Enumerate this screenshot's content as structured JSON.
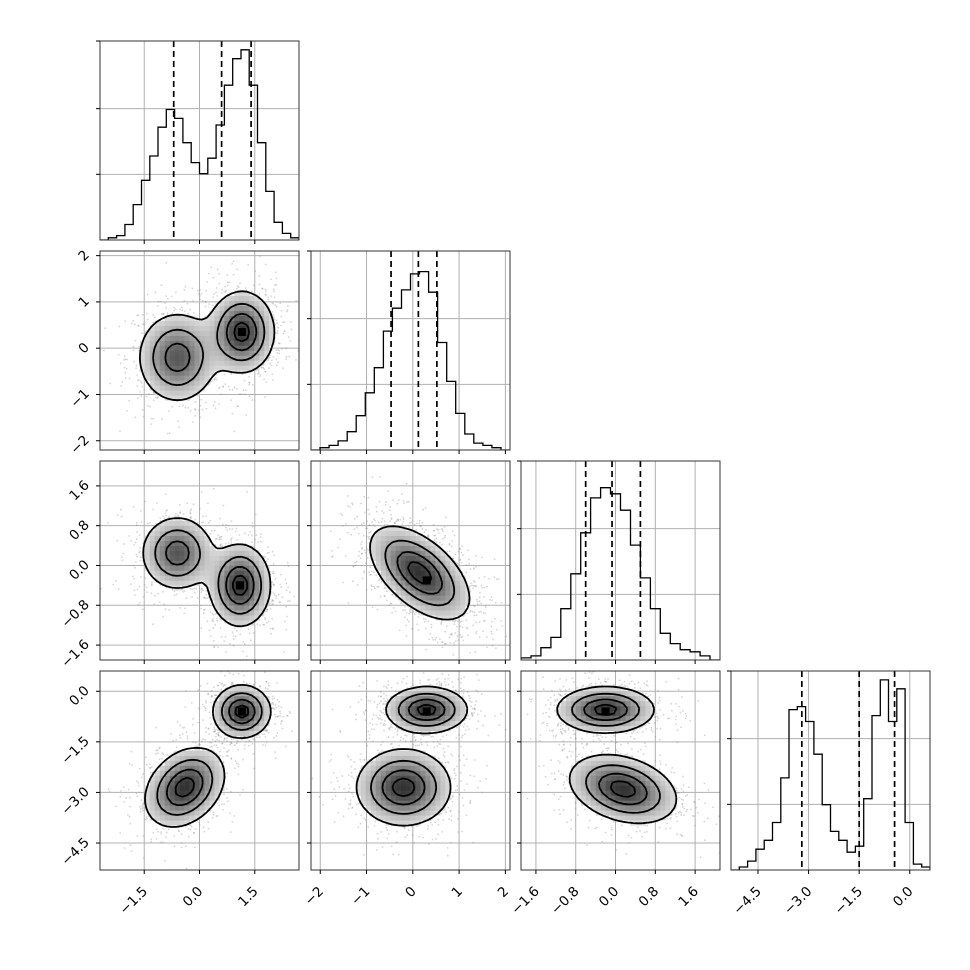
{
  "chart_data": {
    "type": "corner",
    "parameters": [
      {
        "id": "p0",
        "range": [
          -2.7,
          2.7
        ],
        "ticks": [
          -1.5,
          0.0,
          1.5
        ],
        "tick_labels": [
          "−1.5",
          "0.0",
          "1.5"
        ],
        "quantiles": [
          -0.7,
          0.6,
          1.4
        ],
        "hist_counts": [
          0,
          1,
          2,
          7,
          16,
          27,
          38,
          51,
          59,
          55,
          44,
          35,
          30,
          37,
          52,
          70,
          82,
          86,
          70,
          44,
          22,
          8,
          3,
          1
        ],
        "hist_max": 90
      },
      {
        "id": "p1",
        "range": [
          -2.2,
          2.1
        ],
        "ticks": [
          -2,
          -1,
          0,
          1,
          2
        ],
        "tick_labels": [
          "−2",
          "−1",
          "0",
          "1",
          "2"
        ],
        "quantiles": [
          -0.47,
          0.12,
          0.52
        ],
        "hist_counts": [
          0,
          1,
          2,
          4,
          8,
          15,
          25,
          36,
          52,
          62,
          70,
          77,
          78,
          69,
          47,
          30,
          16,
          7,
          3,
          2,
          1,
          0
        ],
        "hist_max": 87
      },
      {
        "id": "p2",
        "range": [
          -1.9,
          2.1
        ],
        "ticks": [
          -1.6,
          -0.8,
          0.0,
          0.8,
          1.6
        ],
        "tick_labels": [
          "−1.6",
          "−0.8",
          "0.0",
          "0.8",
          "1.6"
        ],
        "quantiles": [
          -0.6,
          -0.07,
          0.5
        ],
        "hist_counts": [
          1,
          2,
          6,
          11,
          25,
          42,
          62,
          79,
          84,
          81,
          73,
          56,
          40,
          25,
          13,
          8,
          5,
          4,
          2,
          0
        ],
        "hist_max": 97
      },
      {
        "id": "p3",
        "range": [
          -5.3,
          0.6
        ],
        "ticks": [
          -4.5,
          -3.0,
          -1.5,
          0.0
        ],
        "tick_labels": [
          "−4.5",
          "−3.0",
          "−1.5",
          "0.0"
        ],
        "quantiles": [
          -3.2,
          -1.5,
          -0.45
        ],
        "hist_counts": [
          0,
          1,
          3,
          7,
          10,
          16,
          31,
          54,
          55,
          50,
          39,
          22,
          13,
          10,
          6,
          8,
          24,
          52,
          64,
          50,
          61,
          16,
          2,
          1
        ],
        "hist_max": 67
      }
    ],
    "pairs": [
      {
        "x": 0,
        "y": 1,
        "modes": [
          {
            "mean": [
              -0.6,
              -0.2
            ],
            "sd": [
              0.55,
              0.5
            ],
            "rho": 0.0,
            "weight": 0.45
          },
          {
            "mean": [
              1.15,
              0.35
            ],
            "sd": [
              0.45,
              0.45
            ],
            "rho": 0.0,
            "weight": 0.55
          }
        ],
        "peak": [
          1.15,
          0.35
        ]
      },
      {
        "x": 0,
        "y": 2,
        "modes": [
          {
            "mean": [
              -0.6,
              0.25
            ],
            "sd": [
              0.5,
              0.38
            ],
            "rho": 0.0,
            "weight": 0.45
          },
          {
            "mean": [
              1.1,
              -0.4
            ],
            "sd": [
              0.42,
              0.42
            ],
            "rho": 0.0,
            "weight": 0.55
          }
        ],
        "peak": [
          1.1,
          -0.4
        ]
      },
      {
        "x": 1,
        "y": 2,
        "modes": [
          {
            "mean": [
              0.15,
              -0.15
            ],
            "sd": [
              0.55,
              0.48
            ],
            "rho": -0.55,
            "weight": 1.0
          }
        ],
        "peak": [
          0.3,
          -0.3
        ]
      },
      {
        "x": 0,
        "y": 3,
        "modes": [
          {
            "mean": [
              -0.4,
              -2.85
            ],
            "sd": [
              0.55,
              0.6
            ],
            "rho": 0.3,
            "weight": 0.5
          },
          {
            "mean": [
              1.15,
              -0.6
            ],
            "sd": [
              0.4,
              0.4
            ],
            "rho": 0.0,
            "weight": 0.5
          }
        ],
        "peak": [
          1.15,
          -0.6
        ]
      },
      {
        "x": 1,
        "y": 3,
        "modes": [
          {
            "mean": [
              -0.2,
              -2.85
            ],
            "sd": [
              0.52,
              0.58
            ],
            "rho": 0.0,
            "weight": 0.5
          },
          {
            "mean": [
              0.3,
              -0.55
            ],
            "sd": [
              0.45,
              0.35
            ],
            "rho": 0.0,
            "weight": 0.5
          }
        ],
        "peak": [
          0.3,
          -0.6
        ]
      },
      {
        "x": 2,
        "y": 3,
        "modes": [
          {
            "mean": [
              0.15,
              -2.9
            ],
            "sd": [
              0.55,
              0.52
            ],
            "rho": -0.3,
            "weight": 0.5
          },
          {
            "mean": [
              -0.2,
              -0.55
            ],
            "sd": [
              0.5,
              0.35
            ],
            "rho": 0.0,
            "weight": 0.5
          }
        ],
        "peak": [
          -0.2,
          -0.6
        ]
      }
    ],
    "contour_levels": [
      0.15,
      0.4,
      0.68,
      0.9
    ],
    "grid": true,
    "colors": {
      "line": "#000000",
      "scatter": "#888888",
      "grid": "#b0b0b0",
      "frame": "#333333",
      "density_dark": "#333333"
    }
  }
}
